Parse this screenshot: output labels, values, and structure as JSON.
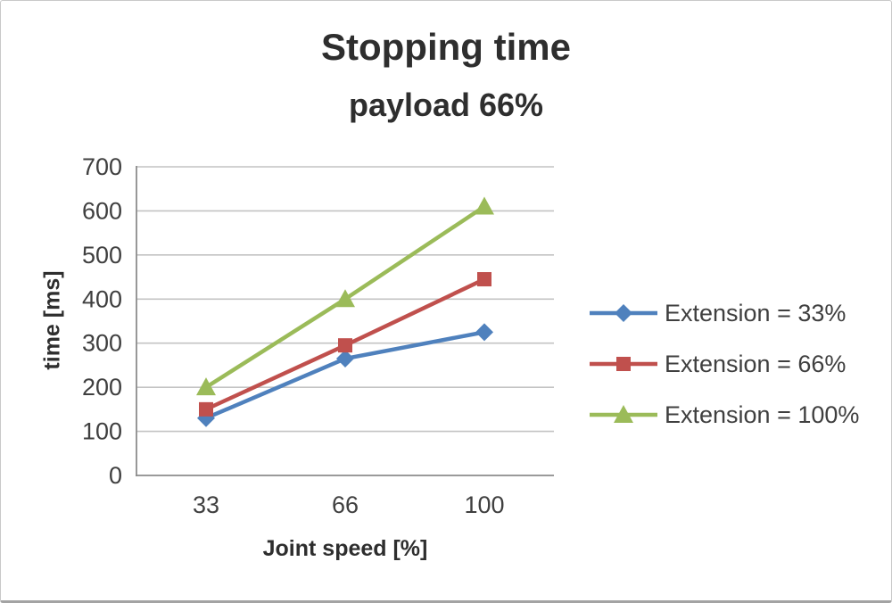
{
  "chart_data": {
    "type": "line",
    "title": "Stopping time",
    "subtitle": "payload 66%",
    "xlabel": "Joint speed [%]",
    "ylabel": "time [ms]",
    "categories": [
      "33",
      "66",
      "100"
    ],
    "series": [
      {
        "name": "Extension = 33%",
        "marker": "diamond",
        "color": "#4F81BD",
        "values": [
          130,
          265,
          325
        ]
      },
      {
        "name": "Extension = 66%",
        "marker": "square",
        "color": "#C0504D",
        "values": [
          150,
          295,
          445
        ]
      },
      {
        "name": "Extension = 100%",
        "marker": "triangle",
        "color": "#9BBB59",
        "values": [
          200,
          400,
          610
        ]
      }
    ],
    "ylim": [
      0,
      700
    ],
    "ytick_step": 100,
    "grid": true,
    "legend_position": "right",
    "colors": {
      "gridline": "#c3c3c3",
      "axis": "#8c8c8c",
      "text": "#3f3f3f"
    }
  }
}
